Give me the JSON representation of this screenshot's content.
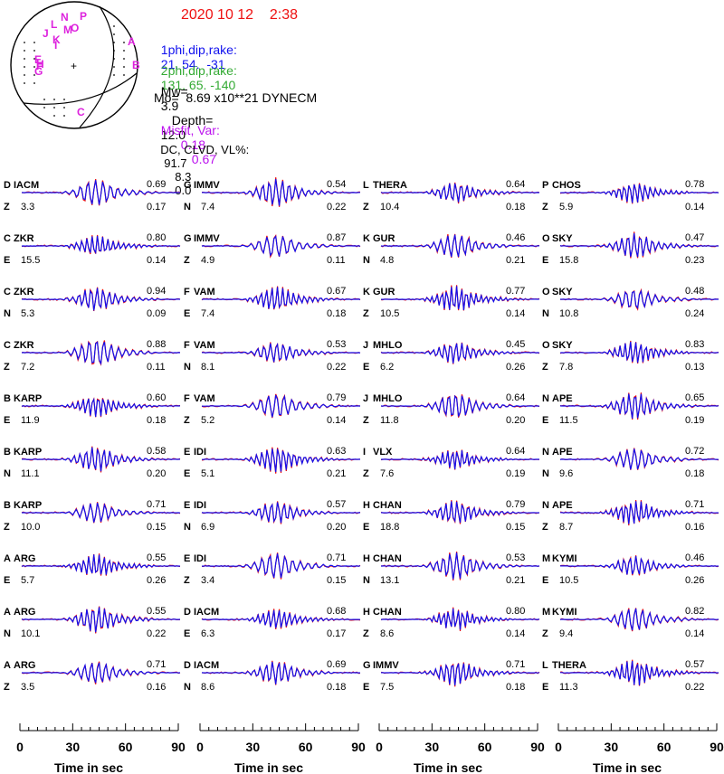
{
  "header": {
    "date": "2020 10 12    2:38",
    "plane1_label": "1phi,dip,rake:",
    "plane1_values": "21. 54.  -31",
    "plane2_label": "2phi,dip,rake:",
    "plane2_values": "131. 65. -140",
    "mw_label": "Mw=",
    "mw": "3.9",
    "depth_label": "Depth=",
    "depth": "12.0",
    "mo": "Mo=  8.69 x10**21 DYNECM",
    "misfit_label": "Misfit, Var:",
    "misfit": "0.18",
    "var": "0.67",
    "dc_label": "DC, CLVD, VL%:",
    "dc": "91.7",
    "clvd": "8.3",
    "vl": "0.0"
  },
  "beachball": {
    "station_letters": [
      "N",
      "P",
      "L",
      "J",
      "K",
      "M",
      "O",
      "I",
      "A",
      "B",
      "E",
      "F",
      "G",
      "H",
      "C"
    ],
    "colors": {
      "letters": "#dd22dd",
      "outline": "#000000"
    }
  },
  "colors": {
    "observed": "#ee1111",
    "synthetic": "#1111ee",
    "text": "#000000"
  },
  "chart_data": {
    "type": "line",
    "xlabel": "Time  in sec",
    "x_ticks": [
      "0",
      "30",
      "60",
      "90"
    ],
    "xlim": [
      0,
      90
    ],
    "columns": [
      [
        {
          "letter": "D",
          "station": "IACM",
          "comp": "Z",
          "dist": "3.3",
          "corr": "0.69",
          "misfit": "0.17"
        },
        {
          "letter": "C",
          "station": "ZKR",
          "comp": "E",
          "dist": "15.5",
          "corr": "0.80",
          "misfit": "0.14"
        },
        {
          "letter": "C",
          "station": "ZKR",
          "comp": "N",
          "dist": "5.3",
          "corr": "0.94",
          "misfit": "0.09"
        },
        {
          "letter": "C",
          "station": "ZKR",
          "comp": "Z",
          "dist": "7.2",
          "corr": "0.88",
          "misfit": "0.11"
        },
        {
          "letter": "B",
          "station": "KARP",
          "comp": "E",
          "dist": "11.9",
          "corr": "0.60",
          "misfit": "0.18"
        },
        {
          "letter": "B",
          "station": "KARP",
          "comp": "N",
          "dist": "11.1",
          "corr": "0.58",
          "misfit": "0.20"
        },
        {
          "letter": "B",
          "station": "KARP",
          "comp": "Z",
          "dist": "10.0",
          "corr": "0.71",
          "misfit": "0.15"
        },
        {
          "letter": "A",
          "station": "ARG",
          "comp": "E",
          "dist": "5.7",
          "corr": "0.55",
          "misfit": "0.26"
        },
        {
          "letter": "A",
          "station": "ARG",
          "comp": "N",
          "dist": "10.1",
          "corr": "0.55",
          "misfit": "0.22"
        },
        {
          "letter": "A",
          "station": "ARG",
          "comp": "Z",
          "dist": "3.5",
          "corr": "0.71",
          "misfit": "0.16"
        }
      ],
      [
        {
          "letter": "G",
          "station": "IMMV",
          "comp": "N",
          "dist": "7.4",
          "corr": "0.54",
          "misfit": "0.22"
        },
        {
          "letter": "G",
          "station": "IMMV",
          "comp": "Z",
          "dist": "4.9",
          "corr": "0.87",
          "misfit": "0.11"
        },
        {
          "letter": "F",
          "station": "VAM",
          "comp": "E",
          "dist": "7.4",
          "corr": "0.67",
          "misfit": "0.18"
        },
        {
          "letter": "F",
          "station": "VAM",
          "comp": "N",
          "dist": "8.1",
          "corr": "0.53",
          "misfit": "0.22"
        },
        {
          "letter": "F",
          "station": "VAM",
          "comp": "Z",
          "dist": "5.2",
          "corr": "0.79",
          "misfit": "0.14"
        },
        {
          "letter": "E",
          "station": "IDI",
          "comp": "E",
          "dist": "5.1",
          "corr": "0.63",
          "misfit": "0.21"
        },
        {
          "letter": "E",
          "station": "IDI",
          "comp": "N",
          "dist": "6.9",
          "corr": "0.57",
          "misfit": "0.20"
        },
        {
          "letter": "E",
          "station": "IDI",
          "comp": "Z",
          "dist": "3.4",
          "corr": "0.71",
          "misfit": "0.15"
        },
        {
          "letter": "D",
          "station": "IACM",
          "comp": "E",
          "dist": "6.3",
          "corr": "0.68",
          "misfit": "0.17"
        },
        {
          "letter": "D",
          "station": "IACM",
          "comp": "N",
          "dist": "8.6",
          "corr": "0.69",
          "misfit": "0.18"
        }
      ],
      [
        {
          "letter": "L",
          "station": "THERA",
          "comp": "Z",
          "dist": "10.4",
          "corr": "0.64",
          "misfit": "0.18"
        },
        {
          "letter": "K",
          "station": "GUR",
          "comp": "N",
          "dist": "4.8",
          "corr": "0.46",
          "misfit": "0.21"
        },
        {
          "letter": "K",
          "station": "GUR",
          "comp": "Z",
          "dist": "10.5",
          "corr": "0.77",
          "misfit": "0.14"
        },
        {
          "letter": "J",
          "station": "MHLO",
          "comp": "E",
          "dist": "6.2",
          "corr": "0.45",
          "misfit": "0.26"
        },
        {
          "letter": "J",
          "station": "MHLO",
          "comp": "Z",
          "dist": "11.8",
          "corr": "0.64",
          "misfit": "0.20"
        },
        {
          "letter": "I",
          "station": "VLX",
          "comp": "Z",
          "dist": "7.6",
          "corr": "0.64",
          "misfit": "0.19"
        },
        {
          "letter": "H",
          "station": "CHAN",
          "comp": "E",
          "dist": "18.8",
          "corr": "0.79",
          "misfit": "0.15"
        },
        {
          "letter": "H",
          "station": "CHAN",
          "comp": "N",
          "dist": "13.1",
          "corr": "0.53",
          "misfit": "0.21"
        },
        {
          "letter": "H",
          "station": "CHAN",
          "comp": "Z",
          "dist": "8.6",
          "corr": "0.80",
          "misfit": "0.14"
        },
        {
          "letter": "G",
          "station": "IMMV",
          "comp": "E",
          "dist": "7.5",
          "corr": "0.71",
          "misfit": "0.18"
        }
      ],
      [
        {
          "letter": "P",
          "station": "CHOS",
          "comp": "Z",
          "dist": "5.9",
          "corr": "0.78",
          "misfit": "0.14"
        },
        {
          "letter": "O",
          "station": "SKY",
          "comp": "E",
          "dist": "15.8",
          "corr": "0.47",
          "misfit": "0.23"
        },
        {
          "letter": "O",
          "station": "SKY",
          "comp": "N",
          "dist": "10.8",
          "corr": "0.48",
          "misfit": "0.24"
        },
        {
          "letter": "O",
          "station": "SKY",
          "comp": "Z",
          "dist": "7.8",
          "corr": "0.83",
          "misfit": "0.13"
        },
        {
          "letter": "N",
          "station": "APE",
          "comp": "E",
          "dist": "11.5",
          "corr": "0.65",
          "misfit": "0.19"
        },
        {
          "letter": "N",
          "station": "APE",
          "comp": "N",
          "dist": "9.6",
          "corr": "0.72",
          "misfit": "0.18"
        },
        {
          "letter": "N",
          "station": "APE",
          "comp": "Z",
          "dist": "8.7",
          "corr": "0.71",
          "misfit": "0.16"
        },
        {
          "letter": "M",
          "station": "KYMI",
          "comp": "E",
          "dist": "10.5",
          "corr": "0.46",
          "misfit": "0.26"
        },
        {
          "letter": "M",
          "station": "KYMI",
          "comp": "Z",
          "dist": "9.4",
          "corr": "0.82",
          "misfit": "0.14"
        },
        {
          "letter": "L",
          "station": "THERA",
          "comp": "E",
          "dist": "11.3",
          "corr": "0.57",
          "misfit": "0.22"
        }
      ]
    ]
  }
}
